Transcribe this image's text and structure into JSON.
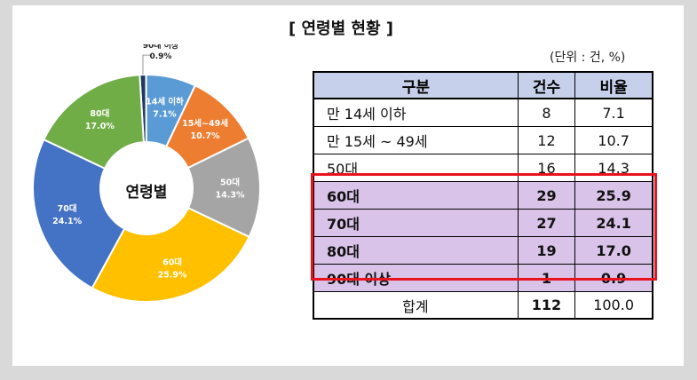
{
  "title": "[ 연령별 현황 ]",
  "unit": "(단위 : 건, %)",
  "center_label": "연령별",
  "colors": {
    "background": "#d9d9d9",
    "header": "#c6d0ea",
    "highlight_row": "#d9c3e8",
    "highlight_border": "#e8131f"
  },
  "table": {
    "headers": [
      "구분",
      "건수",
      "비율"
    ],
    "rows": [
      {
        "label": "만 14세 이하",
        "count": "8",
        "ratio": "7.1"
      },
      {
        "label": "만 15세 ~ 49세",
        "count": "12",
        "ratio": "10.7"
      },
      {
        "label": "50대",
        "count": "16",
        "ratio": "14.3"
      },
      {
        "label": "60대",
        "count": "29",
        "ratio": "25.9"
      },
      {
        "label": "70대",
        "count": "27",
        "ratio": "24.1"
      },
      {
        "label": "80대",
        "count": "19",
        "ratio": "17.0"
      },
      {
        "label": "90대 이상",
        "count": "1",
        "ratio": "0.9"
      }
    ],
    "total": {
      "label": "합계",
      "count": "112",
      "ratio": "100.0"
    }
  },
  "chart_data": {
    "type": "pie",
    "categories": [
      "90대 이상",
      "14세 이하",
      "15세~49세",
      "50대",
      "60대",
      "70대",
      "80대"
    ],
    "values": [
      0.9,
      7.1,
      10.7,
      14.3,
      25.9,
      24.1,
      17.0
    ],
    "value_labels": [
      "0.9%",
      "7.1%",
      "10.7%",
      "14.3%",
      "25.9%",
      "24.1%",
      "17.0%"
    ],
    "colors": [
      "#1f3864",
      "#5b9bd5",
      "#ed7d31",
      "#a5a5a5",
      "#ffc000",
      "#4472c4",
      "#70ad47"
    ]
  }
}
